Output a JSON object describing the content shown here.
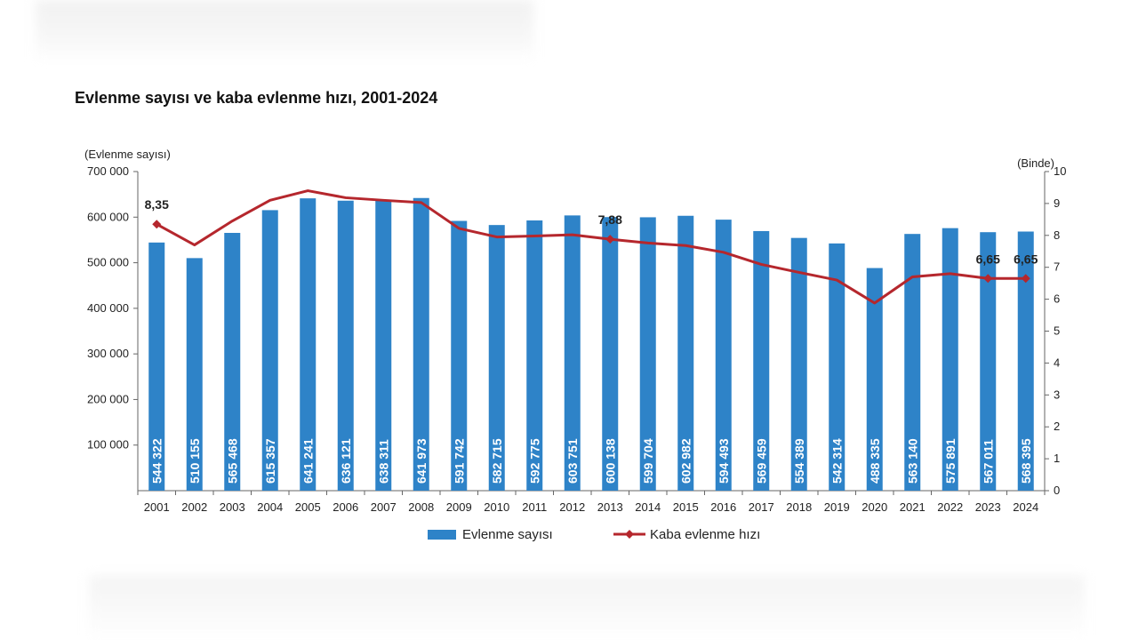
{
  "chart_data": {
    "type": "bar",
    "title": "Evlenme sayısı ve kaba evlenme hızı, 2001-2024",
    "ylabel": "(Evlenme sayısı)",
    "y2label": "(Binde)",
    "ylim": [
      0,
      700000
    ],
    "y2lim": [
      0,
      10
    ],
    "y_ticks": [
      "100 000",
      "200 000",
      "300 000",
      "400 000",
      "500 000",
      "600 000",
      "700 000"
    ],
    "y_tick_values": [
      100000,
      200000,
      300000,
      400000,
      500000,
      600000,
      700000
    ],
    "y2_ticks": [
      0,
      1,
      2,
      3,
      4,
      5,
      6,
      7,
      8,
      9,
      10
    ],
    "categories": [
      "2001",
      "2002",
      "2003",
      "2004",
      "2005",
      "2006",
      "2007",
      "2008",
      "2009",
      "2010",
      "2011",
      "2012",
      "2013",
      "2014",
      "2015",
      "2016",
      "2017",
      "2018",
      "2019",
      "2020",
      "2021",
      "2022",
      "2023",
      "2024"
    ],
    "series": [
      {
        "name": "Evlenme sayısı",
        "type": "bar",
        "color": "#2e83c8",
        "values": [
          544322,
          510155,
          565468,
          615357,
          641241,
          636121,
          638311,
          641973,
          591742,
          582715,
          592775,
          603751,
          600138,
          599704,
          602982,
          594493,
          569459,
          554389,
          542314,
          488335,
          563140,
          575891,
          567011,
          568395
        ],
        "labels": [
          "544 322",
          "510 155",
          "565 468",
          "615 357",
          "641 241",
          "636 121",
          "638 311",
          "641 973",
          "591 742",
          "582 715",
          "592 775",
          "603 751",
          "600 138",
          "599 704",
          "602 982",
          "594 493",
          "569 459",
          "554 389",
          "542 314",
          "488 335",
          "563 140",
          "575 891",
          "567 011",
          "568 395"
        ]
      },
      {
        "name": "Kaba evlenme hızı",
        "type": "line",
        "axis": "right",
        "color": "#b5272d",
        "values": [
          8.35,
          7.7,
          8.45,
          9.1,
          9.4,
          9.18,
          9.1,
          9.03,
          8.22,
          7.95,
          7.98,
          8.02,
          7.88,
          7.76,
          7.68,
          7.47,
          7.09,
          6.84,
          6.6,
          5.88,
          6.7,
          6.8,
          6.65,
          6.65
        ],
        "annotations": [
          {
            "index": 0,
            "label": "8,35"
          },
          {
            "index": 12,
            "label": "7,88"
          },
          {
            "index": 22,
            "label": "6,65"
          },
          {
            "index": 23,
            "label": "6,65"
          }
        ]
      }
    ],
    "legend": "bottom",
    "grid": false
  }
}
